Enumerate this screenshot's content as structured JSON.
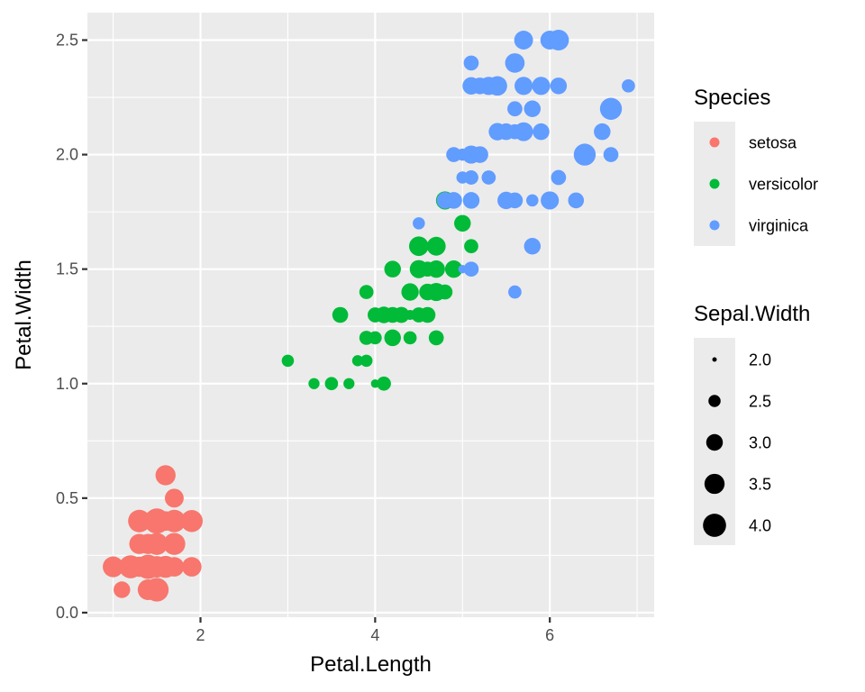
{
  "chart_data": {
    "type": "scatter",
    "xlabel": "Petal.Length",
    "ylabel": "Petal.Width",
    "xlim": [
      0.705,
      7.195
    ],
    "ylim": [
      -0.02,
      2.62
    ],
    "x_ticks": [
      2,
      4,
      6
    ],
    "y_ticks": [
      0.0,
      0.5,
      1.0,
      1.5,
      2.0,
      2.5
    ],
    "x_tick_labels": [
      "2",
      "4",
      "6"
    ],
    "y_tick_labels": [
      "0.0",
      "0.5",
      "1.0",
      "1.5",
      "2.0",
      "2.5"
    ],
    "grid": true,
    "legend_position": "right",
    "color_legend": {
      "title": "Species",
      "entries": [
        {
          "name": "setosa",
          "color": "#F8766D"
        },
        {
          "name": "versicolor",
          "color": "#00BA38"
        },
        {
          "name": "virginica",
          "color": "#619CFF"
        }
      ]
    },
    "size_legend": {
      "title": "Sepal.Width",
      "entries": [
        {
          "label": "2.0",
          "value": 2.0
        },
        {
          "label": "2.5",
          "value": 2.5
        },
        {
          "label": "3.0",
          "value": 3.0
        },
        {
          "label": "3.5",
          "value": 3.5
        },
        {
          "label": "4.0",
          "value": 4.0
        }
      ]
    },
    "size_domain": [
      2.0,
      4.4
    ],
    "series": [
      {
        "name": "setosa",
        "color": "#F8766D",
        "points": [
          [
            1.4,
            0.2,
            3.5
          ],
          [
            1.4,
            0.2,
            3.0
          ],
          [
            1.3,
            0.2,
            3.2
          ],
          [
            1.5,
            0.2,
            3.1
          ],
          [
            1.4,
            0.2,
            3.6
          ],
          [
            1.7,
            0.4,
            3.9
          ],
          [
            1.4,
            0.3,
            3.4
          ],
          [
            1.5,
            0.2,
            3.4
          ],
          [
            1.4,
            0.2,
            2.9
          ],
          [
            1.5,
            0.1,
            3.1
          ],
          [
            1.5,
            0.2,
            3.7
          ],
          [
            1.6,
            0.2,
            3.4
          ],
          [
            1.4,
            0.1,
            3.0
          ],
          [
            1.1,
            0.1,
            3.0
          ],
          [
            1.2,
            0.2,
            4.0
          ],
          [
            1.5,
            0.4,
            4.4
          ],
          [
            1.3,
            0.4,
            3.9
          ],
          [
            1.4,
            0.3,
            3.5
          ],
          [
            1.7,
            0.3,
            3.8
          ],
          [
            1.5,
            0.3,
            3.8
          ],
          [
            1.7,
            0.2,
            3.4
          ],
          [
            1.5,
            0.4,
            3.7
          ],
          [
            1.0,
            0.2,
            3.6
          ],
          [
            1.7,
            0.5,
            3.3
          ],
          [
            1.9,
            0.2,
            3.4
          ],
          [
            1.6,
            0.2,
            3.0
          ],
          [
            1.6,
            0.4,
            3.4
          ],
          [
            1.5,
            0.2,
            3.5
          ],
          [
            1.4,
            0.2,
            3.4
          ],
          [
            1.6,
            0.2,
            3.2
          ],
          [
            1.6,
            0.2,
            3.1
          ],
          [
            1.5,
            0.4,
            3.4
          ],
          [
            1.5,
            0.1,
            4.1
          ],
          [
            1.4,
            0.2,
            4.2
          ],
          [
            1.5,
            0.2,
            3.1
          ],
          [
            1.2,
            0.2,
            3.2
          ],
          [
            1.3,
            0.2,
            3.5
          ],
          [
            1.4,
            0.1,
            3.6
          ],
          [
            1.3,
            0.2,
            3.0
          ],
          [
            1.5,
            0.2,
            3.4
          ],
          [
            1.3,
            0.3,
            3.5
          ],
          [
            1.3,
            0.3,
            2.3
          ],
          [
            1.3,
            0.2,
            3.2
          ],
          [
            1.6,
            0.6,
            3.5
          ],
          [
            1.9,
            0.4,
            3.8
          ],
          [
            1.4,
            0.3,
            3.0
          ],
          [
            1.6,
            0.2,
            3.8
          ],
          [
            1.4,
            0.2,
            3.2
          ],
          [
            1.5,
            0.2,
            3.7
          ],
          [
            1.4,
            0.2,
            3.3
          ]
        ]
      },
      {
        "name": "versicolor",
        "color": "#00BA38",
        "points": [
          [
            4.7,
            1.4,
            3.2
          ],
          [
            4.5,
            1.5,
            3.2
          ],
          [
            4.9,
            1.5,
            3.1
          ],
          [
            4.0,
            1.3,
            2.3
          ],
          [
            4.6,
            1.5,
            2.8
          ],
          [
            4.5,
            1.3,
            2.8
          ],
          [
            4.7,
            1.6,
            3.3
          ],
          [
            3.3,
            1.0,
            2.4
          ],
          [
            4.6,
            1.3,
            2.9
          ],
          [
            3.9,
            1.4,
            2.7
          ],
          [
            3.5,
            1.0,
            2.0
          ],
          [
            4.2,
            1.5,
            3.0
          ],
          [
            4.0,
            1.0,
            2.2
          ],
          [
            4.7,
            1.4,
            2.9
          ],
          [
            3.6,
            1.3,
            2.9
          ],
          [
            4.4,
            1.4,
            3.1
          ],
          [
            4.5,
            1.5,
            3.0
          ],
          [
            4.1,
            1.0,
            2.7
          ],
          [
            4.5,
            1.5,
            2.2
          ],
          [
            3.9,
            1.1,
            2.5
          ],
          [
            4.8,
            1.8,
            3.2
          ],
          [
            4.0,
            1.3,
            2.8
          ],
          [
            4.9,
            1.5,
            2.5
          ],
          [
            4.7,
            1.2,
            2.8
          ],
          [
            4.3,
            1.3,
            2.9
          ],
          [
            4.4,
            1.4,
            3.0
          ],
          [
            4.8,
            1.4,
            2.8
          ],
          [
            5.0,
            1.7,
            3.0
          ],
          [
            4.5,
            1.5,
            2.9
          ],
          [
            3.5,
            1.0,
            2.6
          ],
          [
            3.8,
            1.1,
            2.4
          ],
          [
            3.7,
            1.0,
            2.4
          ],
          [
            3.9,
            1.2,
            2.7
          ],
          [
            5.1,
            1.6,
            2.7
          ],
          [
            4.5,
            1.5,
            3.0
          ],
          [
            4.5,
            1.6,
            3.4
          ],
          [
            4.7,
            1.5,
            3.1
          ],
          [
            4.4,
            1.3,
            2.3
          ],
          [
            4.1,
            1.3,
            3.0
          ],
          [
            4.0,
            1.3,
            2.5
          ],
          [
            4.4,
            1.2,
            2.6
          ],
          [
            4.6,
            1.4,
            3.0
          ],
          [
            4.0,
            1.2,
            2.6
          ],
          [
            3.3,
            1.0,
            2.3
          ],
          [
            4.2,
            1.3,
            2.7
          ],
          [
            4.2,
            1.2,
            3.0
          ],
          [
            4.2,
            1.3,
            2.9
          ],
          [
            4.3,
            1.3,
            2.9
          ],
          [
            3.0,
            1.1,
            2.5
          ],
          [
            4.1,
            1.3,
            2.8
          ]
        ]
      },
      {
        "name": "virginica",
        "color": "#619CFF",
        "points": [
          [
            6.0,
            2.5,
            3.3
          ],
          [
            5.1,
            1.9,
            2.7
          ],
          [
            5.9,
            2.1,
            3.0
          ],
          [
            5.6,
            1.8,
            2.9
          ],
          [
            5.8,
            2.2,
            3.0
          ],
          [
            6.6,
            2.1,
            3.0
          ],
          [
            4.5,
            1.7,
            2.5
          ],
          [
            6.3,
            1.8,
            2.9
          ],
          [
            5.8,
            1.8,
            2.5
          ],
          [
            6.1,
            2.5,
            3.6
          ],
          [
            5.1,
            2.0,
            3.2
          ],
          [
            5.3,
            1.9,
            2.7
          ],
          [
            5.5,
            2.1,
            3.0
          ],
          [
            5.0,
            2.0,
            2.5
          ],
          [
            5.1,
            2.4,
            2.8
          ],
          [
            5.3,
            2.3,
            3.2
          ],
          [
            5.5,
            1.8,
            3.0
          ],
          [
            6.7,
            2.2,
            3.8
          ],
          [
            6.9,
            2.3,
            2.6
          ],
          [
            5.0,
            1.5,
            2.2
          ],
          [
            5.7,
            2.3,
            3.2
          ],
          [
            4.9,
            2.0,
            2.8
          ],
          [
            6.7,
            2.0,
            2.8
          ],
          [
            4.9,
            1.8,
            2.7
          ],
          [
            5.7,
            2.1,
            3.3
          ],
          [
            6.0,
            1.8,
            3.2
          ],
          [
            4.8,
            1.8,
            2.8
          ],
          [
            4.9,
            1.8,
            3.0
          ],
          [
            5.6,
            2.1,
            2.8
          ],
          [
            5.8,
            1.6,
            3.0
          ],
          [
            6.1,
            1.9,
            2.8
          ],
          [
            6.4,
            2.0,
            3.8
          ],
          [
            5.6,
            2.2,
            2.8
          ],
          [
            5.1,
            1.5,
            2.8
          ],
          [
            5.6,
            1.4,
            2.6
          ],
          [
            6.1,
            2.3,
            3.0
          ],
          [
            5.6,
            2.4,
            3.4
          ],
          [
            5.5,
            1.8,
            3.1
          ],
          [
            4.8,
            1.8,
            3.0
          ],
          [
            5.4,
            2.1,
            3.1
          ],
          [
            5.6,
            2.4,
            3.1
          ],
          [
            5.1,
            2.3,
            3.1
          ],
          [
            5.1,
            1.9,
            2.7
          ],
          [
            5.9,
            2.3,
            3.2
          ],
          [
            5.7,
            2.5,
            3.3
          ],
          [
            5.2,
            2.3,
            3.0
          ],
          [
            5.0,
            1.9,
            2.5
          ],
          [
            5.2,
            2.0,
            3.0
          ],
          [
            5.4,
            2.3,
            3.4
          ],
          [
            5.1,
            1.8,
            3.0
          ]
        ]
      }
    ]
  }
}
